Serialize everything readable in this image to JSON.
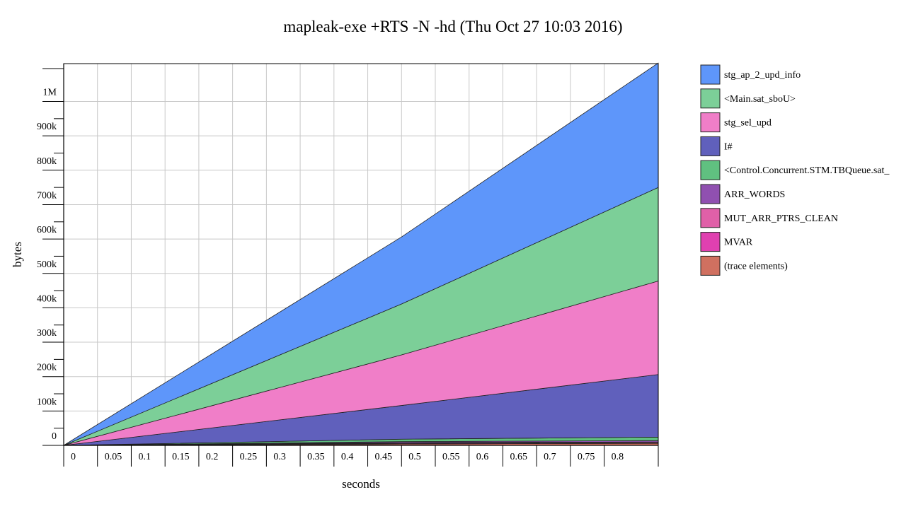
{
  "chart_data": {
    "type": "area",
    "stacked": true,
    "title": "mapleak-exe +RTS -N -hd (Thu Oct 27 10:03 2016)",
    "xlabel": "seconds",
    "ylabel": "bytes",
    "xlim": [
      0,
      0.88
    ],
    "ylim": [
      0,
      1110000
    ],
    "grid": true,
    "legend_position": "right",
    "x_ticks": [
      0,
      0.05,
      0.1,
      0.15,
      0.2,
      0.25,
      0.3,
      0.35,
      0.4,
      0.45,
      0.5,
      0.55,
      0.6,
      0.65,
      0.7,
      0.75,
      0.8
    ],
    "x_tick_labels": [
      "0",
      "0.05",
      "0.1",
      "0.15",
      "0.2",
      "0.25",
      "0.3",
      "0.35",
      "0.4",
      "0.45",
      "0.5",
      "0.55",
      "0.6",
      "0.65",
      "0.7",
      "0.75",
      "0.8"
    ],
    "y_ticks": [
      0,
      100000,
      200000,
      300000,
      400000,
      500000,
      600000,
      700000,
      800000,
      900000,
      1000000
    ],
    "y_tick_labels": [
      "0",
      "100k",
      "200k",
      "300k",
      "400k",
      "500k",
      "600k",
      "700k",
      "800k",
      "900k",
      "1M"
    ],
    "x": [
      0,
      0.5,
      0.88
    ],
    "series": [
      {
        "name": "(trace elements)",
        "color": "#d07060",
        "values": [
          0,
          4000,
          6000
        ]
      },
      {
        "name": "MVAR",
        "color": "#e040b0",
        "values": [
          0,
          2000,
          2000
        ]
      },
      {
        "name": "MUT_ARR_PTRS_CLEAN",
        "color": "#e060a8",
        "values": [
          0,
          2000,
          2000
        ]
      },
      {
        "name": "ARR_WORDS",
        "color": "#9050b0",
        "values": [
          0,
          3000,
          4000
        ]
      },
      {
        "name": "<Control.Concurrent.STM.TBQueue.sat_",
        "color": "#60c080",
        "values": [
          0,
          7000,
          10000
        ]
      },
      {
        "name": "I#",
        "color": "#6060bc",
        "values": [
          0,
          98000,
          182000
        ]
      },
      {
        "name": "stg_sel_upd",
        "color": "#f07ec8",
        "values": [
          0,
          147000,
          272000
        ]
      },
      {
        "name": "<Main.sat_sboU>",
        "color": "#7ccf98",
        "values": [
          0,
          148000,
          272000
        ]
      },
      {
        "name": "stg_ap_2_upd_info",
        "color": "#5e96fa",
        "values": [
          0,
          195000,
          362000
        ]
      }
    ]
  },
  "legend": [
    {
      "label": "stg_ap_2_upd_info",
      "color": "#5e96fa"
    },
    {
      "label": "<Main.sat_sboU>",
      "color": "#7ccf98"
    },
    {
      "label": "stg_sel_upd",
      "color": "#f07ec8"
    },
    {
      "label": "I#",
      "color": "#6060bc"
    },
    {
      "label": "<Control.Concurrent.STM.TBQueue.sat_",
      "color": "#60c080"
    },
    {
      "label": "ARR_WORDS",
      "color": "#9050b0"
    },
    {
      "label": "MUT_ARR_PTRS_CLEAN",
      "color": "#e060a8"
    },
    {
      "label": "MVAR",
      "color": "#e040b0"
    },
    {
      "label": "(trace elements)",
      "color": "#d07060"
    }
  ]
}
